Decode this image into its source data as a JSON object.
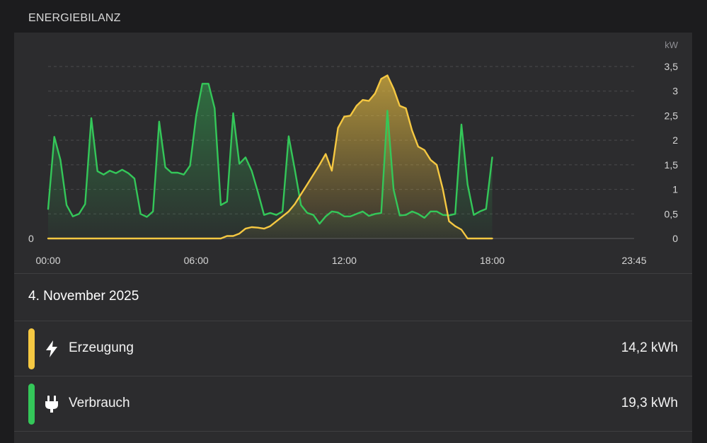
{
  "section_title": "ENERGIEBILANZ",
  "date": "4. November 2025",
  "colors": {
    "production": "#f5c842",
    "consumption": "#34c759",
    "background": "#1c1c1e",
    "card": "#2c2c2e"
  },
  "rows": [
    {
      "label": "Erzeugung",
      "value": "14,2 kWh",
      "color": "#f5c842",
      "icon": "lightning-bolt-icon"
    },
    {
      "label": "Verbrauch",
      "value": "19,3 kWh",
      "color": "#34c759",
      "icon": "power-plug-icon"
    }
  ],
  "chart_data": {
    "type": "area",
    "unit": "kW",
    "x_range": [
      "00:00",
      "23:45"
    ],
    "x_tick_labels": [
      "00:00",
      "06:00",
      "12:00",
      "18:00",
      "23:45"
    ],
    "y_tick_labels": [
      "0",
      "0,5",
      "1",
      "1,5",
      "2",
      "2,5",
      "3",
      "3,5"
    ],
    "left_zero_label": "0",
    "ylim": [
      0,
      3.5
    ],
    "grid": true,
    "series": [
      {
        "name": "Verbrauch",
        "color": "#34c759",
        "x": [
          "00:00",
          "00:15",
          "00:30",
          "00:45",
          "01:00",
          "01:15",
          "01:30",
          "01:45",
          "02:00",
          "02:15",
          "02:30",
          "02:45",
          "03:00",
          "03:15",
          "03:30",
          "03:45",
          "04:00",
          "04:15",
          "04:30",
          "04:45",
          "05:00",
          "05:15",
          "05:30",
          "05:45",
          "06:00",
          "06:15",
          "06:30",
          "06:45",
          "07:00",
          "07:15",
          "07:30",
          "07:45",
          "08:00",
          "08:15",
          "08:30",
          "08:45",
          "09:00",
          "09:15",
          "09:30",
          "09:45",
          "10:00",
          "10:15",
          "10:30",
          "10:45",
          "11:00",
          "11:15",
          "11:30",
          "11:45",
          "12:00",
          "12:15",
          "12:30",
          "12:45",
          "13:00",
          "13:15",
          "13:30",
          "13:45",
          "14:00",
          "14:15",
          "14:30",
          "14:45",
          "15:00",
          "15:15",
          "15:30",
          "15:45",
          "16:00",
          "16:15",
          "16:30",
          "16:45",
          "17:00",
          "17:15",
          "17:30",
          "17:45",
          "18:00"
        ],
        "values": [
          0.6,
          2.07,
          1.6,
          0.68,
          0.45,
          0.5,
          0.7,
          2.45,
          1.37,
          1.3,
          1.38,
          1.33,
          1.4,
          1.33,
          1.22,
          0.5,
          0.44,
          0.55,
          2.38,
          1.45,
          1.34,
          1.34,
          1.3,
          1.48,
          2.5,
          3.15,
          3.15,
          2.65,
          0.68,
          0.75,
          2.55,
          1.52,
          1.65,
          1.38,
          0.95,
          0.48,
          0.52,
          0.48,
          0.55,
          2.08,
          1.4,
          0.68,
          0.52,
          0.48,
          0.3,
          0.45,
          0.55,
          0.53,
          0.45,
          0.45,
          0.5,
          0.55,
          0.46,
          0.5,
          0.52,
          2.6,
          1.0,
          0.47,
          0.48,
          0.55,
          0.5,
          0.42,
          0.55,
          0.55,
          0.48,
          0.47,
          0.5,
          2.32,
          1.1,
          0.48,
          0.55,
          0.6,
          1.65
        ]
      },
      {
        "name": "Erzeugung",
        "color": "#f5c842",
        "x": [
          "00:00",
          "06:45",
          "07:00",
          "07:15",
          "07:30",
          "07:45",
          "08:00",
          "08:15",
          "08:30",
          "08:45",
          "09:00",
          "09:15",
          "09:30",
          "09:45",
          "10:00",
          "10:15",
          "10:30",
          "10:45",
          "11:00",
          "11:15",
          "11:30",
          "11:45",
          "12:00",
          "12:15",
          "12:30",
          "12:45",
          "13:00",
          "13:15",
          "13:30",
          "13:45",
          "14:00",
          "14:15",
          "14:30",
          "14:45",
          "15:00",
          "15:15",
          "15:30",
          "15:45",
          "16:00",
          "16:15",
          "16:30",
          "16:45",
          "17:00",
          "18:00"
        ],
        "values": [
          0,
          0,
          0,
          0.05,
          0.05,
          0.1,
          0.2,
          0.23,
          0.22,
          0.2,
          0.25,
          0.35,
          0.45,
          0.55,
          0.7,
          0.9,
          1.1,
          1.3,
          1.5,
          1.72,
          1.38,
          2.25,
          2.48,
          2.5,
          2.7,
          2.82,
          2.8,
          2.95,
          3.25,
          3.32,
          3.05,
          2.7,
          2.65,
          2.2,
          1.87,
          1.8,
          1.6,
          1.5,
          1.0,
          0.35,
          0.25,
          0.18,
          0,
          0
        ]
      }
    ]
  }
}
